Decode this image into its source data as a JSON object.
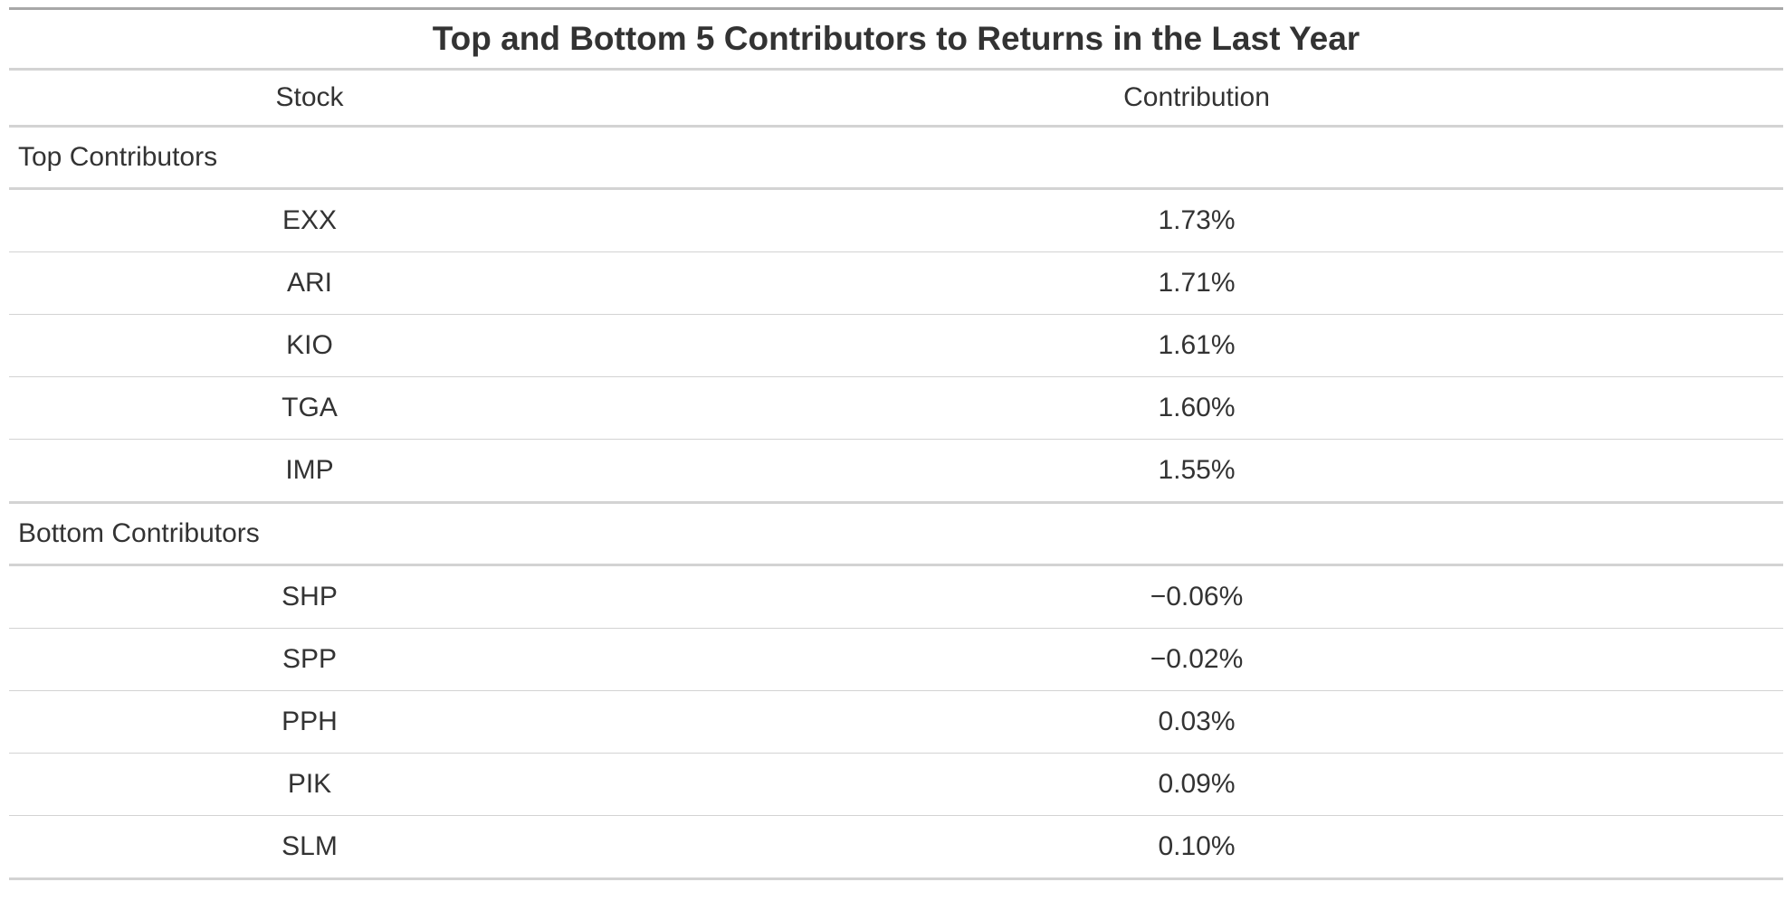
{
  "chart_data": {
    "type": "table",
    "title": "Top and Bottom 5 Contributors to Returns in the Last Year",
    "columns": [
      "Stock",
      "Contribution"
    ],
    "groups": [
      {
        "label": "Top Contributors",
        "rows": [
          {
            "stock": "EXX",
            "contribution": "1.73%"
          },
          {
            "stock": "ARI",
            "contribution": "1.71%"
          },
          {
            "stock": "KIO",
            "contribution": "1.61%"
          },
          {
            "stock": "TGA",
            "contribution": "1.60%"
          },
          {
            "stock": "IMP",
            "contribution": "1.55%"
          }
        ]
      },
      {
        "label": "Bottom Contributors",
        "rows": [
          {
            "stock": "SHP",
            "contribution": "−0.06%"
          },
          {
            "stock": "SPP",
            "contribution": "−0.02%"
          },
          {
            "stock": "PPH",
            "contribution": "0.03%"
          },
          {
            "stock": "PIK",
            "contribution": "0.09%"
          },
          {
            "stock": "SLM",
            "contribution": "0.10%"
          }
        ]
      }
    ]
  }
}
